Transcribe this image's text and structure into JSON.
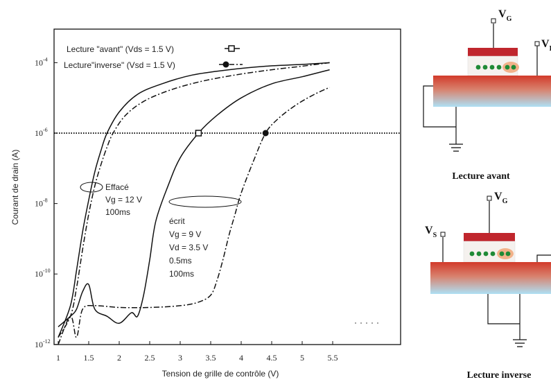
{
  "chart_data": {
    "type": "line",
    "xlabel": "Tension de grille de contrôle (V)",
    "ylabel": "Courant de drain (A)",
    "xlim": [
      1,
      6
    ],
    "ylim_log10": [
      -12,
      -3.3
    ],
    "x_ticks": [
      "1",
      "1.5",
      "2",
      "2.5",
      "3",
      "3.5",
      "4",
      "4.5",
      "5",
      "5.5"
    ],
    "y_ticks": [
      {
        "base": "10",
        "exp": "-4",
        "value": -4
      },
      {
        "base": "10",
        "exp": "-6",
        "value": -6
      },
      {
        "base": "10",
        "exp": "-8",
        "value": -8
      },
      {
        "base": "10",
        "exp": "-10",
        "value": -10
      },
      {
        "base": "10",
        "exp": "-12",
        "value": -12
      }
    ],
    "reference_level_log10": -6,
    "legend": [
      {
        "label": "Lecture \"avant\" (Vds = 1.5 V)",
        "marker": "open-square",
        "dash": "solid"
      },
      {
        "label": "Lecture\"inverse\" (Vsd = 1.5 V)",
        "marker": "filled-circle",
        "dash": "dashdot"
      }
    ],
    "series": [
      {
        "state": "erased",
        "read": "forward",
        "dash": "solid",
        "x": [
          1.0,
          1.2,
          1.3,
          1.4,
          1.5,
          1.6,
          1.7,
          1.8,
          2.0,
          2.3,
          2.7,
          3.2,
          3.8,
          4.4,
          5.0,
          5.45
        ],
        "y": [
          -11.8,
          -10.9,
          -9.9,
          -8.8,
          -7.9,
          -7.1,
          -6.5,
          -6.0,
          -5.4,
          -4.9,
          -4.6,
          -4.35,
          -4.2,
          -4.1,
          -4.05,
          -4.0
        ]
      },
      {
        "state": "erased",
        "read": "reverse",
        "dash": "dashdot",
        "x": [
          1.0,
          1.2,
          1.3,
          1.4,
          1.5,
          1.6,
          1.7,
          1.8,
          1.9,
          2.1,
          2.4,
          2.8,
          3.3,
          3.9,
          4.5,
          5.0,
          5.45
        ],
        "y": [
          -11.8,
          -11.2,
          -10.4,
          -9.3,
          -8.3,
          -7.5,
          -6.9,
          -6.4,
          -6.0,
          -5.5,
          -5.1,
          -4.8,
          -4.55,
          -4.35,
          -4.2,
          -4.1,
          -4.0
        ]
      },
      {
        "state": "programmed",
        "read": "forward",
        "dash": "solid",
        "x": [
          1.0,
          1.2,
          1.3,
          1.4,
          1.5,
          1.6,
          1.8,
          2.0,
          2.2,
          2.3,
          2.4,
          2.5,
          2.6,
          2.8,
          3.0,
          3.3,
          3.6,
          4.0,
          4.5,
          5.0,
          5.45
        ],
        "y": [
          -11.5,
          -11.2,
          -11.0,
          -10.5,
          -10.3,
          -11.0,
          -11.2,
          -11.4,
          -11.1,
          -11.2,
          -10.6,
          -9.6,
          -8.5,
          -7.5,
          -6.7,
          -6.0,
          -5.5,
          -5.0,
          -4.6,
          -4.4,
          -4.2
        ]
      },
      {
        "state": "programmed",
        "read": "reverse",
        "dash": "dashdot",
        "x": [
          1.0,
          1.2,
          1.3,
          1.4,
          1.6,
          2.0,
          2.5,
          3.0,
          3.3,
          3.5,
          3.6,
          3.7,
          3.8,
          3.9,
          4.0,
          4.2,
          4.4,
          4.6,
          4.9,
          5.2,
          5.45
        ],
        "y": [
          -12.0,
          -11.2,
          -11.8,
          -11.0,
          -10.9,
          -10.95,
          -10.95,
          -10.9,
          -10.8,
          -10.6,
          -10.2,
          -9.6,
          -8.9,
          -8.3,
          -7.7,
          -6.8,
          -6.0,
          -5.6,
          -5.2,
          -4.9,
          -4.7
        ]
      }
    ],
    "markers": [
      {
        "x": 3.3,
        "y": -6,
        "shape": "open-square"
      },
      {
        "x": 4.4,
        "y": -6,
        "shape": "filled-circle"
      }
    ],
    "annotations": {
      "efface": [
        "Effacé",
        "Vg = 12 V",
        "100ms"
      ],
      "ecrit": [
        "écrit",
        "Vg = 9 V",
        "Vd = 3.5 V",
        "0.5ms",
        "100ms"
      ]
    }
  },
  "diagrams": [
    {
      "caption": "Lecture avant",
      "gate_label": "V",
      "gate_sub": "G",
      "side_label": "V",
      "side_sub": "D"
    },
    {
      "caption": "Lecture inverse",
      "gate_label": "V",
      "gate_sub": "G",
      "side_label": "V",
      "side_sub": "S"
    }
  ],
  "colors": {
    "curve": "#111111",
    "gate": "#c0262d",
    "substrate_top": "#d23a2a",
    "substrate_bottom": "#aee0f4",
    "dot": "#1f8a36",
    "charge": "#f2b28a"
  }
}
